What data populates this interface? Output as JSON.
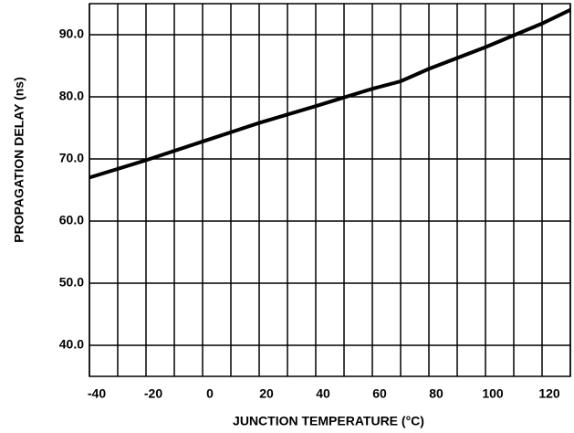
{
  "chart_data": {
    "type": "line",
    "x_label": "JUNCTION TEMPERATURE (°C)",
    "y_label": "PROPAGATION DELAY (ns)",
    "x": [
      -40,
      -20,
      0,
      20,
      40,
      60,
      70,
      80,
      100,
      120,
      130
    ],
    "series": [
      {
        "color": "#000000",
        "values": [
          67,
          69.8,
          72.8,
          75.8,
          78.5,
          81.3,
          82.5,
          84.5,
          88,
          91.8,
          94
        ]
      }
    ],
    "xlim": [
      -40,
      130
    ],
    "xticks": [
      -40,
      -20,
      0,
      20,
      40,
      60,
      80,
      100,
      120
    ],
    "x_minor_ticks": [
      -30,
      -10,
      10,
      30,
      50,
      70,
      90,
      110,
      130
    ],
    "ylim": [
      35,
      95
    ],
    "yticks": [
      {
        "value": 40,
        "label": "40.0"
      },
      {
        "value": 50,
        "label": "50.0"
      },
      {
        "value": 60,
        "label": "60.0"
      },
      {
        "value": 70,
        "label": "70.0"
      },
      {
        "value": 80,
        "label": "80.0"
      },
      {
        "value": 90,
        "label": "90.0"
      }
    ],
    "grid": true
  }
}
